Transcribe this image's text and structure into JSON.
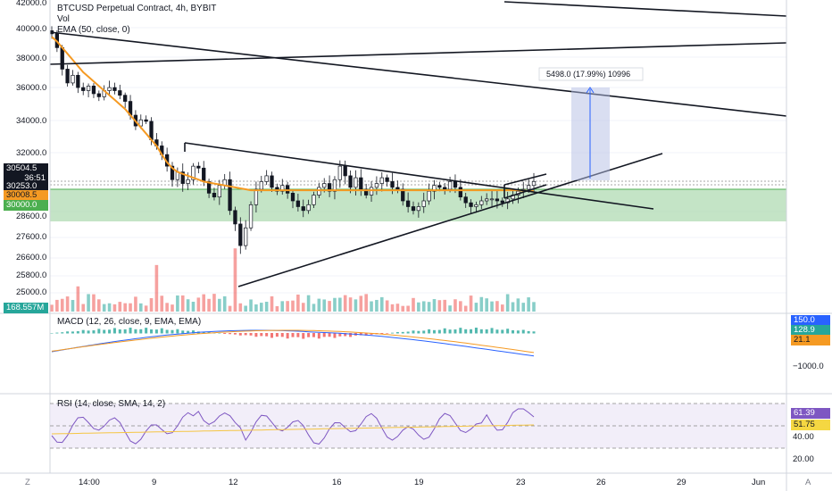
{
  "legend": {
    "title": "BTCUSD Perpetual Contract, 4h, BYBIT",
    "vol": "Vol",
    "ema": "EMA (50, close, 0)",
    "macd": "MACD (12, 26, close, 9, EMA, EMA)",
    "rsi": "RSI (14, close, SMA, 14, 2)"
  },
  "measure_label": "5498.0 (17.99%) 10996",
  "price_axis_ticks": [
    "42000.0",
    "40000.0",
    "38000.0",
    "36000.0",
    "34000.0",
    "32000.0",
    "27600.0",
    "26600.0",
    "25800.0",
    "25000.0"
  ],
  "hidden_ticks": [
    "28600.0",
    "30000.0"
  ],
  "tags": {
    "last_price": "30504.5",
    "countdown": "36:51",
    "price2": "30253.0",
    "ema": "30008.5",
    "level": "30000.0",
    "volume": "168.557M",
    "macd": "150.0",
    "macd_signal": "128.9",
    "macd_hist": "21.1",
    "macd_tick": "−1000.0",
    "rsi": "61.39",
    "rsi_ma": "51.75",
    "rsi_tick_40": "40.00",
    "rsi_tick_20": "20.00"
  },
  "time_axis": [
    "14:00",
    "9",
    "12",
    "16",
    "19",
    "23",
    "26",
    "29",
    "Jun"
  ],
  "corner": {
    "left": "Z",
    "right": "A"
  },
  "colors": {
    "up": "#26a69a",
    "down": "#ef5350",
    "ema": "#f59a23",
    "zone": "#a5d6a7",
    "macd": "#2962ff",
    "rsi": "#7e57c2"
  },
  "chart_data": {
    "type": "candlestick",
    "symbol": "BTCUSD",
    "timeframe": "4h",
    "ylim": [
      24500,
      42500
    ],
    "support_zone": [
      28850,
      30350
    ],
    "ema_last": 30008.5,
    "last": 30504.5,
    "closes": [
      39600,
      38700,
      37300,
      36400,
      36900,
      36100,
      35900,
      36200,
      35700,
      35500,
      35900,
      36100,
      35900,
      35600,
      35200,
      34300,
      33600,
      34000,
      33900,
      32700,
      32300,
      31900,
      31300,
      30600,
      31000,
      30400,
      30600,
      31300,
      31200,
      30500,
      29900,
      29700,
      30300,
      30600,
      29000,
      28300,
      27200,
      28100,
      29300,
      30100,
      30500,
      30800,
      30200,
      30000,
      30300,
      29900,
      29500,
      29200,
      29000,
      29300,
      29800,
      30200,
      30400,
      30000,
      30600,
      31300,
      30800,
      30200,
      30700,
      30100,
      29800,
      30200,
      30400,
      30700,
      30500,
      30200,
      30100,
      29500,
      29200,
      29000,
      29200,
      29500,
      30000,
      30300,
      30200,
      30100,
      30500,
      30200,
      29700,
      29400,
      29200,
      29300,
      29500,
      29600,
      29600,
      29500,
      29400,
      29600,
      29800,
      30000,
      30100,
      30300,
      30504.5
    ],
    "ema_series": [
      39400,
      39100,
      38700,
      38300,
      37900,
      37500,
      37100,
      36800,
      36500,
      36200,
      35900,
      35600,
      35300,
      35000,
      34700,
      34300,
      33900,
      33500,
      33100,
      32700,
      32300,
      31900,
      31500,
      31200,
      31000,
      30900,
      30800,
      30700,
      30600,
      30500,
      30450,
      30400,
      30350,
      30300,
      30250,
      30200,
      30150,
      30100,
      30050,
      30050,
      30050,
      30050,
      30050,
      30050,
      30050,
      30050,
      30050,
      30050,
      30050,
      30050,
      30050,
      30050,
      30050,
      30050,
      30050,
      30050,
      30050,
      30050,
      30050,
      30050,
      30050,
      30050,
      30050,
      30050,
      30050,
      30050,
      30050,
      30050,
      30050,
      30050,
      30050,
      30050,
      30050,
      30050,
      30050,
      30050,
      30050,
      30050,
      30050,
      30050,
      30050,
      30050,
      30050,
      30050,
      30050,
      30050,
      30050,
      30050,
      30050,
      30050,
      30030,
      30010,
      30008.5
    ]
  }
}
